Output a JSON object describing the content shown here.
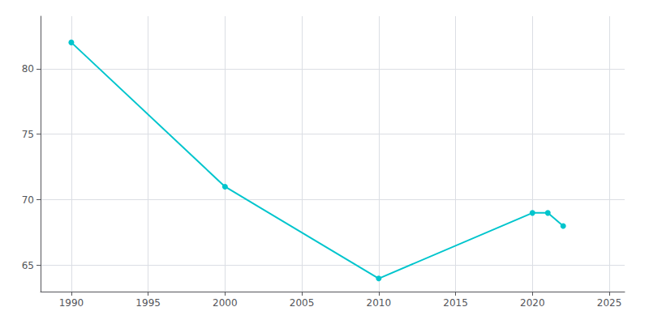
{
  "chart_data": {
    "type": "line",
    "x": [
      1990,
      2000,
      2010,
      2020,
      2021,
      2022
    ],
    "values": [
      82,
      71,
      64,
      69,
      69,
      68
    ],
    "color": "#00C5CD",
    "marker": "circle",
    "xlim": [
      1988,
      2026
    ],
    "xticks": [
      1990,
      1995,
      2000,
      2005,
      2010,
      2015,
      2020,
      2025
    ],
    "ylim": [
      63,
      84
    ],
    "yticks": [
      65,
      70,
      75,
      80
    ],
    "grid": true
  }
}
